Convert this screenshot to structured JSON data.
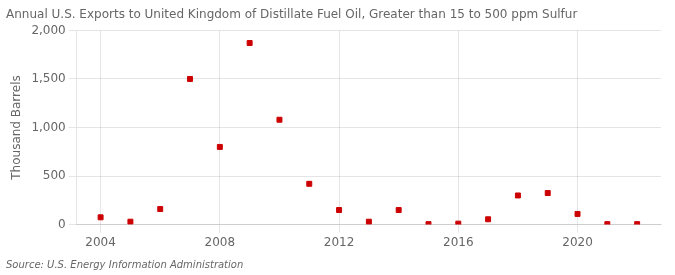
{
  "chart_data": {
    "type": "scatter",
    "title": "Annual U.S. Exports to United Kingdom of Distillate Fuel Oil, Greater than 15 to 500 ppm Sulfur",
    "ylabel": "Thousand Barrels",
    "annotation": "Source: U.S. Energy Information Administration",
    "x": [
      2004,
      2005,
      2006,
      2007,
      2008,
      2009,
      2010,
      2011,
      2012,
      2013,
      2014,
      2015,
      2016,
      2017,
      2018,
      2019,
      2020,
      2021,
      2022
    ],
    "values": [
      75,
      30,
      160,
      1500,
      800,
      1870,
      1080,
      420,
      150,
      30,
      150,
      5,
      10,
      55,
      300,
      325,
      110,
      5,
      5
    ],
    "color": "#cc0000",
    "marker": "square",
    "xlim": [
      2003.2,
      2022.8
    ],
    "xticks": [
      2004,
      2008,
      2012,
      2016,
      2020
    ],
    "ylim": [
      0,
      2000
    ],
    "yticks": [
      0,
      500,
      {
        "value": 1000,
        "label": "1,000"
      },
      {
        "value": 1500,
        "label": "1,500"
      },
      {
        "value": 2000,
        "label": "2,000"
      }
    ],
    "grid": true
  }
}
